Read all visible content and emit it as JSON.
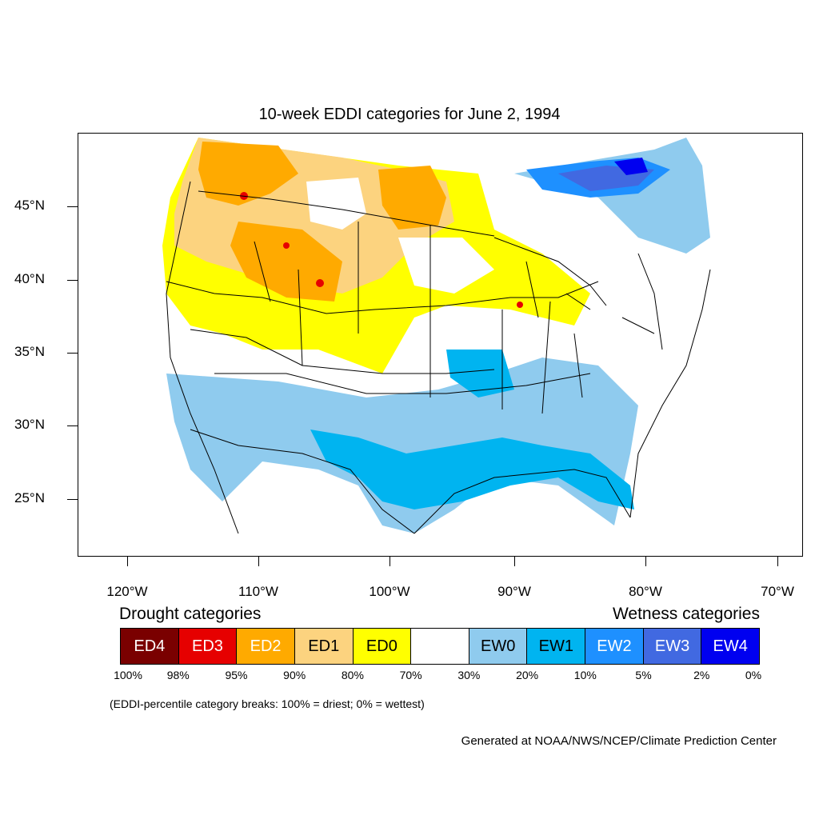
{
  "title": "10-week EDDI categories for June 2, 1994",
  "lat_labels": [
    "45°N",
    "40°N",
    "35°N",
    "30°N",
    "25°N"
  ],
  "lon_labels": [
    "120°W",
    "110°W",
    "100°W",
    "90°W",
    "80°W",
    "70°W"
  ],
  "legend": {
    "drought_heading": "Drought categories",
    "wetness_heading": "Wetness categories",
    "categories": [
      {
        "label": "ED4",
        "color": "#7a0000",
        "text_color": "#ffffff"
      },
      {
        "label": "ED3",
        "color": "#e60000",
        "text_color": "#ffffff"
      },
      {
        "label": "ED2",
        "color": "#ffaa00",
        "text_color": "#ffffff"
      },
      {
        "label": "ED1",
        "color": "#fcd37f",
        "text_color": "#000000"
      },
      {
        "label": "ED0",
        "color": "#ffff00",
        "text_color": "#000000"
      },
      {
        "label": "",
        "color": "#ffffff",
        "text_color": "#000000"
      },
      {
        "label": "EW0",
        "color": "#8fcbee",
        "text_color": "#000000"
      },
      {
        "label": "EW1",
        "color": "#00b4f0",
        "text_color": "#000000"
      },
      {
        "label": "EW2",
        "color": "#1e90ff",
        "text_color": "#ffffff"
      },
      {
        "label": "EW3",
        "color": "#4169e1",
        "text_color": "#ffffff"
      },
      {
        "label": "EW4",
        "color": "#0000f0",
        "text_color": "#ffffff"
      }
    ],
    "percentiles": [
      "100%",
      "98%",
      "95%",
      "90%",
      "80%",
      "70%",
      "30%",
      "20%",
      "10%",
      "5%",
      "2%",
      "0%"
    ]
  },
  "note": "(EDDI-percentile category breaks: 100% = driest; 0% = wettest)",
  "credit": "Generated at NOAA/NWS/NCEP/Climate Prediction Center"
}
